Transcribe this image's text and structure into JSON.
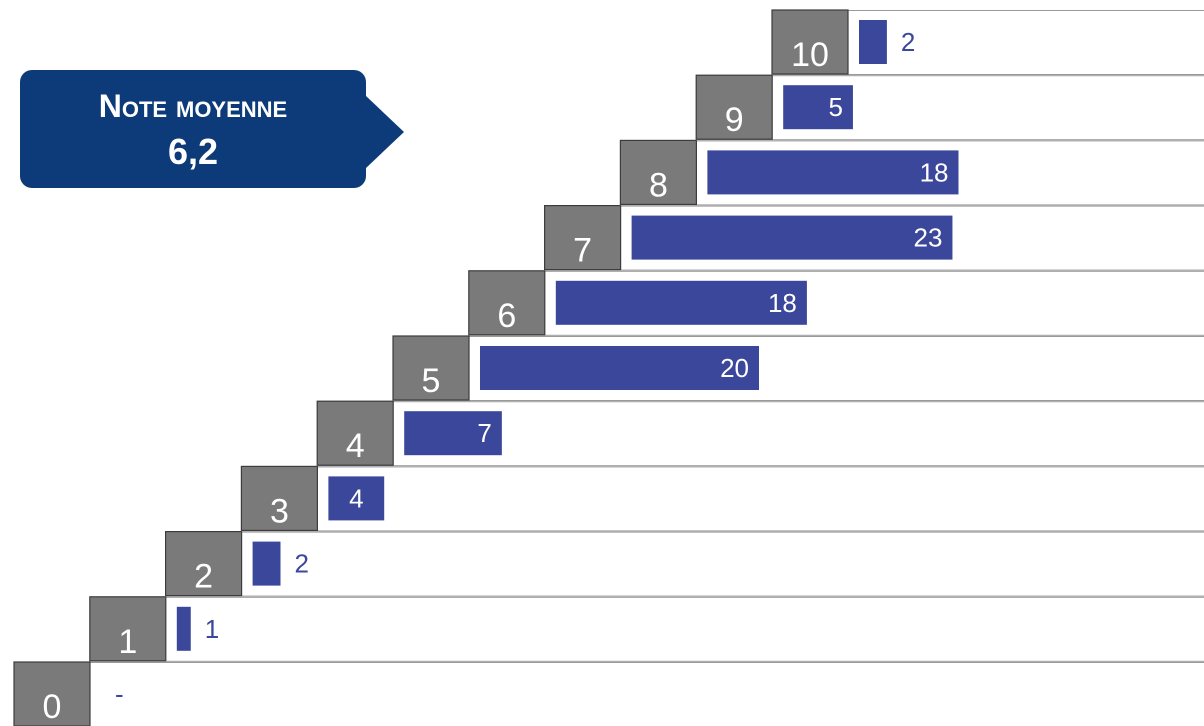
{
  "callout": {
    "title": "Note moyenne",
    "value": "6,2"
  },
  "colors": {
    "bar": "#3a479a",
    "step": "#7a7a7a",
    "label_inside": "#ffffff",
    "label_outside": "#3a479a",
    "callout": "#0d3a78"
  },
  "chart_data": {
    "type": "bar",
    "orientation": "horizontal",
    "categories": [
      "0",
      "1",
      "2",
      "3",
      "4",
      "5",
      "6",
      "7",
      "8",
      "9",
      "10"
    ],
    "values": [
      0,
      1,
      2,
      4,
      7,
      20,
      18,
      23,
      18,
      5,
      2
    ],
    "value_labels": [
      "-",
      "1",
      "2",
      "4",
      "7",
      "20",
      "18",
      "23",
      "18",
      "5",
      "2"
    ],
    "title": "",
    "xlabel": "",
    "ylabel": "",
    "grid": false,
    "legend": "none"
  }
}
